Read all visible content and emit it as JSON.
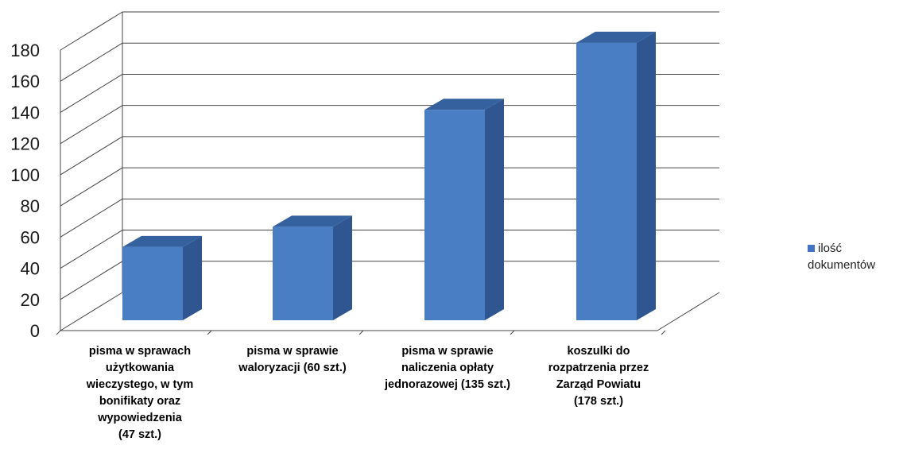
{
  "colors": {
    "bar_front": "#4a7ec4",
    "bar_side": "#2f5690",
    "bar_top": "#35619f",
    "grid": "#444444",
    "legend_swatch": "#4472c4"
  },
  "legend": {
    "label": "ilość\ndokumentów"
  },
  "chart_data": {
    "type": "bar",
    "title": "",
    "xlabel": "",
    "ylabel": "",
    "ylim": [
      0,
      180
    ],
    "yticks": [
      0,
      20,
      40,
      60,
      80,
      100,
      120,
      140,
      160,
      180
    ],
    "grid": true,
    "legend_position": "right",
    "categories": [
      "pisma w sprawach\nużytkowania\nwieczystego, w tym\nbonifikaty oraz\nwypowiedzenia\n(47 szt.)",
      "pisma w sprawie\nwaloryzacji (60 szt.)",
      "pisma w sprawie\nnaliczenia opłaty\njednorazowej (135 szt.)",
      "koszulki do\nrozpatrzenia przez\nZarząd Powiatu\n(178 szt.)"
    ],
    "series": [
      {
        "name": "ilość dokumentów",
        "values": [
          47,
          60,
          135,
          178
        ]
      }
    ]
  }
}
